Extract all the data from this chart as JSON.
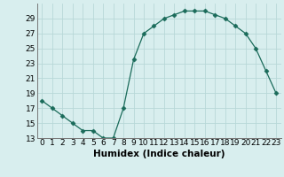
{
  "x": [
    0,
    1,
    2,
    3,
    4,
    5,
    6,
    7,
    8,
    9,
    10,
    11,
    12,
    13,
    14,
    15,
    16,
    17,
    18,
    19,
    20,
    21,
    22,
    23
  ],
  "y": [
    18,
    17,
    16,
    15,
    14,
    14,
    13,
    13,
    17,
    23.5,
    27,
    28,
    29,
    29.5,
    30,
    30,
    30,
    29.5,
    29,
    28,
    27,
    25,
    22,
    19
  ],
  "line_color": "#1a6b5a",
  "marker": "D",
  "marker_size": 2.5,
  "bg_color": "#d8eeee",
  "grid_color": "#b8d8d8",
  "xlabel": "Humidex (Indice chaleur)",
  "ylim": [
    13,
    31
  ],
  "xlim": [
    -0.5,
    23.5
  ],
  "yticks": [
    13,
    15,
    17,
    19,
    21,
    23,
    25,
    27,
    29
  ],
  "xticks": [
    0,
    1,
    2,
    3,
    4,
    5,
    6,
    7,
    8,
    9,
    10,
    11,
    12,
    13,
    14,
    15,
    16,
    17,
    18,
    19,
    20,
    21,
    22,
    23
  ],
  "xtick_labels": [
    "0",
    "1",
    "2",
    "3",
    "4",
    "5",
    "6",
    "7",
    "8",
    "9",
    "10",
    "11",
    "12",
    "13",
    "14",
    "15",
    "16",
    "17",
    "18",
    "19",
    "20",
    "21",
    "22",
    "23"
  ],
  "font_size": 6.5,
  "xlabel_fontsize": 7.5
}
